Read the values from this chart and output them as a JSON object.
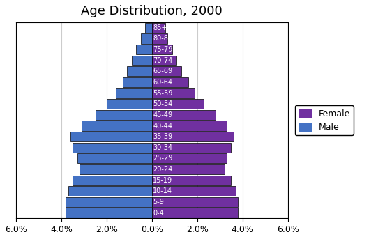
{
  "title": "Age Distribution, 2000",
  "age_groups": [
    "0-4",
    "5-9",
    "10-14",
    "15-19",
    "20-24",
    "25-29",
    "30-34",
    "35-39",
    "40-44",
    "45-49",
    "50-54",
    "55-59",
    "60-64",
    "65-69",
    "70-74",
    "75-79",
    "80-84",
    "85+"
  ],
  "male": [
    3.8,
    3.8,
    3.7,
    3.5,
    3.2,
    3.3,
    3.5,
    3.6,
    3.1,
    2.5,
    2.0,
    1.6,
    1.3,
    1.1,
    0.9,
    0.7,
    0.5,
    0.3
  ],
  "female": [
    3.8,
    3.8,
    3.7,
    3.5,
    3.2,
    3.3,
    3.5,
    3.6,
    3.3,
    2.8,
    2.3,
    1.9,
    1.6,
    1.3,
    1.1,
    0.9,
    0.7,
    0.6
  ],
  "male_color": "#4472C4",
  "female_color": "#7030A0",
  "xlim": [
    -6,
    6
  ],
  "xticks": [
    -6,
    -4,
    -2,
    0,
    2,
    4,
    6
  ],
  "xtick_labels": [
    "6.0%",
    "4.0%",
    "2.0%",
    "0.0%",
    "2.0%",
    "4.0%",
    "6.0%"
  ],
  "bar_edgecolor": "#000000",
  "bar_linewidth": 0.5,
  "background_color": "#ffffff",
  "legend_female": "Female",
  "legend_male": "Male",
  "title_fontsize": 13,
  "tick_fontsize": 9,
  "label_fontsize": 7.0,
  "grid_color": "#cccccc",
  "figsize": [
    5.29,
    3.43
  ],
  "dpi": 100
}
